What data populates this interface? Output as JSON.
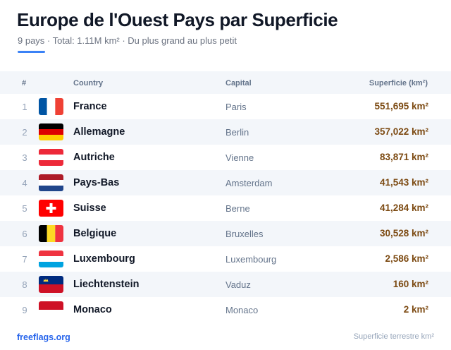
{
  "header": {
    "title": "Europe de l'Ouest Pays par Superficie",
    "subtitle": "9 pays · Total: 1.11M km² · Du plus grand au plus petit"
  },
  "colors": {
    "accent": "#3b82f6",
    "area_text": "#7c4a12",
    "link": "#2563eb",
    "stripe": "#f3f6fa"
  },
  "table": {
    "headers": {
      "num": "#",
      "country": "Country",
      "capital": "Capital",
      "area": "Superficie (km²)"
    },
    "rows": [
      {
        "rank": "1",
        "flag": "france-flag-icon",
        "country": "France",
        "capital": "Paris",
        "area": "551,695 km²"
      },
      {
        "rank": "2",
        "flag": "germany-flag-icon",
        "country": "Allemagne",
        "capital": "Berlin",
        "area": "357,022 km²"
      },
      {
        "rank": "3",
        "flag": "austria-flag-icon",
        "country": "Autriche",
        "capital": "Vienne",
        "area": "83,871 km²"
      },
      {
        "rank": "4",
        "flag": "netherlands-flag-icon",
        "country": "Pays-Bas",
        "capital": "Amsterdam",
        "area": "41,543 km²"
      },
      {
        "rank": "5",
        "flag": "switzerland-flag-icon",
        "country": "Suisse",
        "capital": "Berne",
        "area": "41,284 km²"
      },
      {
        "rank": "6",
        "flag": "belgium-flag-icon",
        "country": "Belgique",
        "capital": "Bruxelles",
        "area": "30,528 km²"
      },
      {
        "rank": "7",
        "flag": "luxembourg-flag-icon",
        "country": "Luxembourg",
        "capital": "Luxembourg",
        "area": "2,586 km²"
      },
      {
        "rank": "8",
        "flag": "liechtenstein-flag-icon",
        "country": "Liechtenstein",
        "capital": "Vaduz",
        "area": "160 km²"
      },
      {
        "rank": "9",
        "flag": "monaco-flag-icon",
        "country": "Monaco",
        "capital": "Monaco",
        "area": "2 km²"
      }
    ]
  },
  "footer": {
    "site": "freeflags.org",
    "note": "Superficie terrestre km²"
  }
}
